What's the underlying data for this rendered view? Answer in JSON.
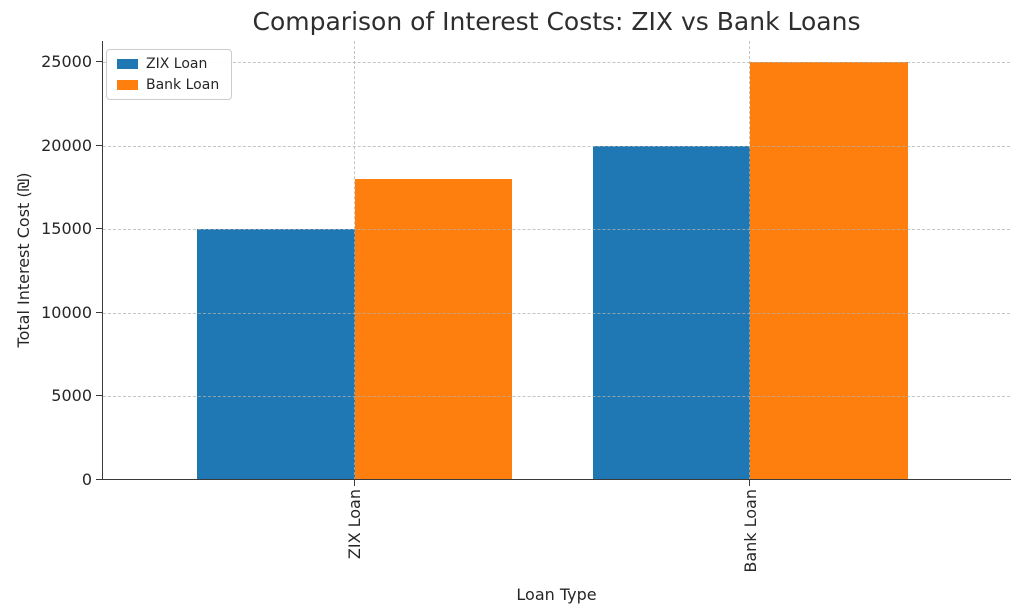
{
  "chart_data": {
    "type": "bar",
    "title": "Comparison of Interest Costs: ZIX vs Bank Loans",
    "xlabel": "Loan Type",
    "ylabel": "Total Interest Cost (₪)",
    "categories": [
      "ZIX Loan",
      "Bank Loan"
    ],
    "series": [
      {
        "name": "ZIX Loan",
        "color": "#1f77b4",
        "values": [
          15000,
          20000
        ]
      },
      {
        "name": "Bank Loan",
        "color": "#ff7f0e",
        "values": [
          18000,
          25000
        ]
      }
    ],
    "yticks": [
      0,
      5000,
      10000,
      15000,
      20000,
      25000
    ],
    "ylim": [
      0,
      26250
    ],
    "grid": true,
    "grid_style": "dashed",
    "legend_position": "upper-left",
    "x_tick_rotation": 90,
    "colors": {
      "axis": "#3a3a3a",
      "text": "#262626",
      "grid": "#b2b2b2"
    }
  }
}
